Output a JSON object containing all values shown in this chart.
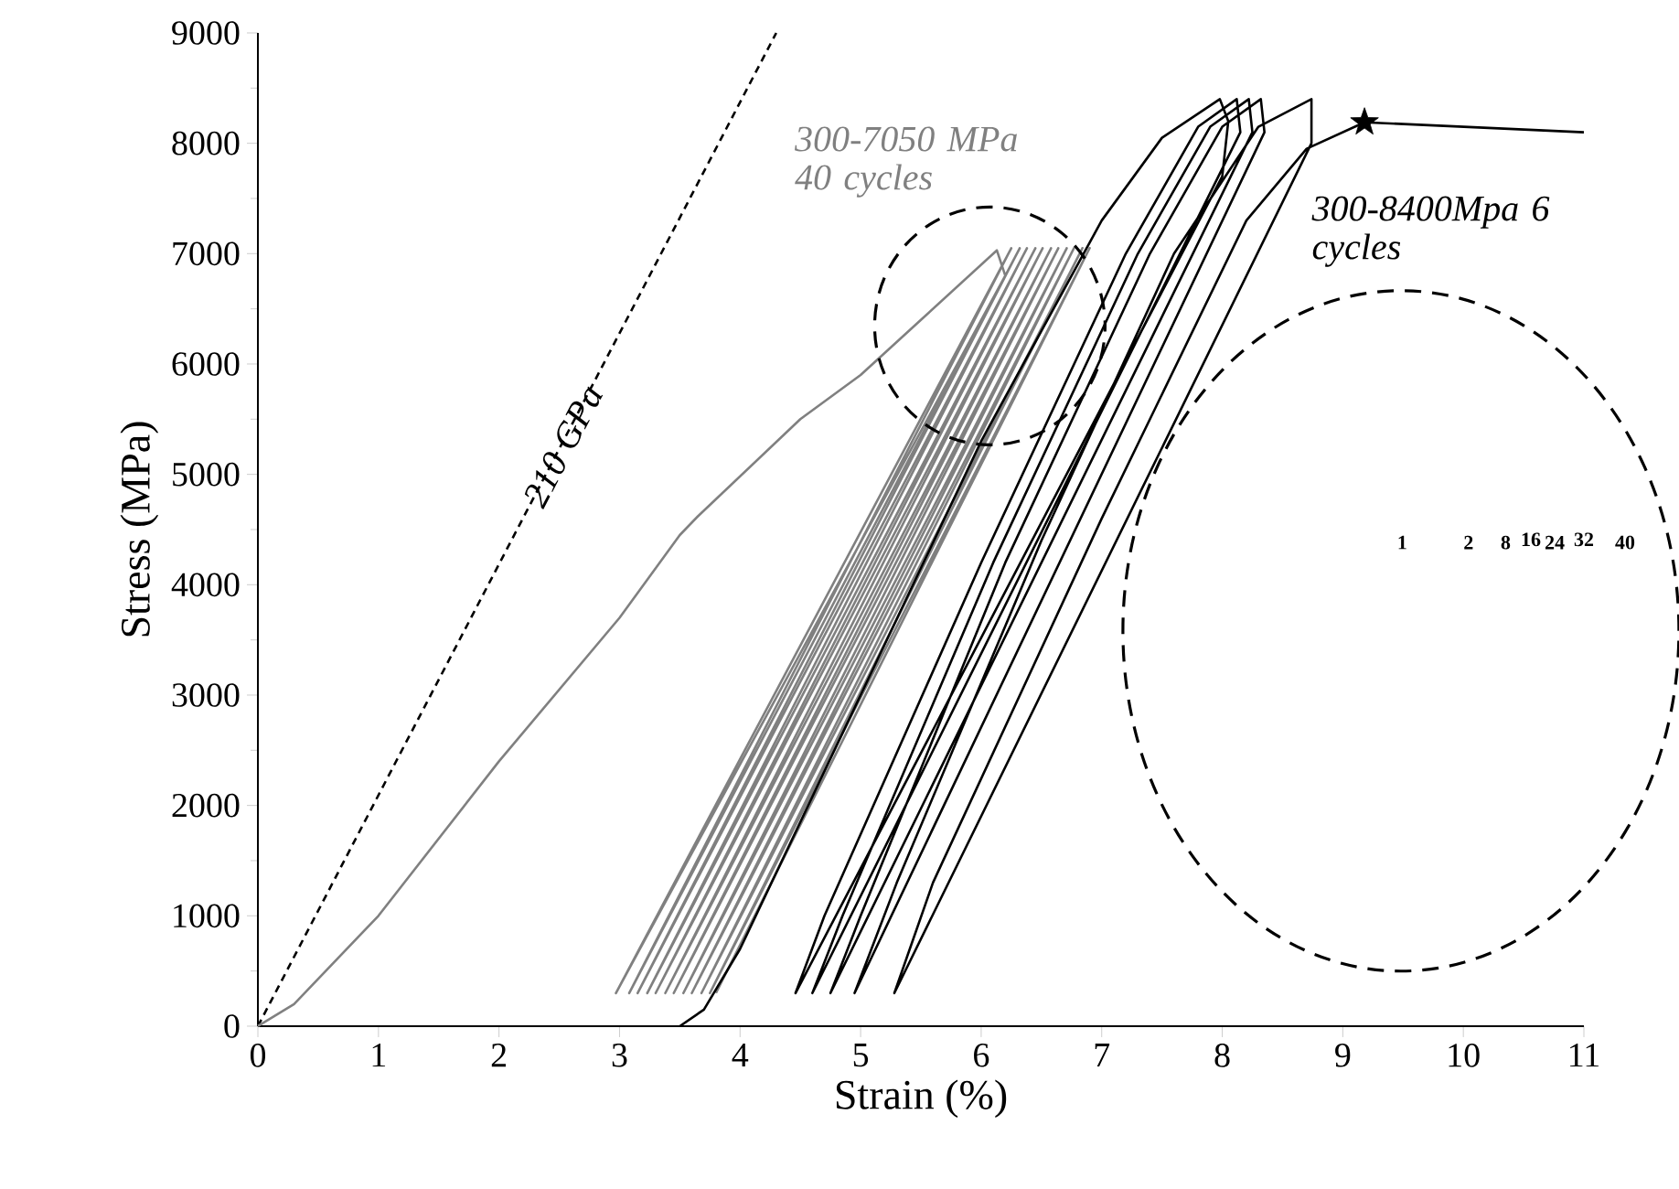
{
  "chart_data": {
    "type": "line",
    "xlabel": "Strain (%)",
    "ylabel": "Stress (MPa)",
    "xlim": [
      0,
      11
    ],
    "ylim": [
      0,
      9000
    ],
    "xticks": [
      0,
      1,
      2,
      3,
      4,
      5,
      6,
      7,
      8,
      9,
      10,
      11
    ],
    "yticks": [
      0,
      1000,
      2000,
      3000,
      4000,
      5000,
      6000,
      7000,
      8000,
      9000
    ],
    "series": [
      {
        "name": "210 GPa",
        "type": "line",
        "color": "#000000",
        "line_style": "dashed",
        "x": [
          0,
          4.3
        ],
        "values": [
          0,
          9000
        ]
      },
      {
        "name": "300-7050 MPa 40 cycles",
        "type": "line",
        "color": "#808080",
        "line_style": "solid",
        "x": [
          0,
          0.3,
          1,
          2,
          3,
          3.5,
          3.65,
          4.5,
          5.0,
          5.5,
          6.13,
          6.2,
          2.97,
          6.25,
          3.08,
          6.32,
          3.15,
          6.38,
          3.23,
          6.45,
          3.3,
          6.51,
          3.38,
          6.58,
          3.45,
          6.64,
          3.53,
          6.71,
          3.6,
          6.77,
          3.68,
          6.84,
          3.75,
          6.9,
          3.8
        ],
        "values": [
          0,
          200,
          1000,
          2400,
          3700,
          4450,
          4620,
          5500,
          5900,
          6400,
          7030,
          6800,
          300,
          7050,
          300,
          7050,
          300,
          7050,
          300,
          7050,
          300,
          7050,
          300,
          7050,
          300,
          7050,
          300,
          7050,
          300,
          7050,
          300,
          7050,
          300,
          7050,
          300
        ]
      },
      {
        "name": "300-8400Mpa 6 cycles",
        "type": "line",
        "color": "#000000",
        "line_style": "solid",
        "x": [
          3.5,
          3.7,
          4.0,
          5.0,
          6.0,
          7.0,
          7.5,
          7.98,
          8.05,
          8.0,
          4.46,
          4.7,
          6.0,
          7.2,
          7.8,
          8.12,
          8.15,
          4.6,
          4.85,
          6.1,
          7.3,
          7.9,
          8.22,
          8.25,
          4.75,
          5.0,
          6.2,
          7.4,
          8.0,
          8.32,
          8.35,
          4.95,
          5.3,
          6.5,
          7.6,
          8.3,
          8.74,
          8.74,
          5.28,
          5.6,
          7.0,
          8.2,
          8.7,
          9.18,
          11.0
        ],
        "values": [
          0,
          150,
          700,
          3000,
          5300,
          7300,
          8050,
          8400,
          8200,
          7700,
          300,
          1000,
          4200,
          7000,
          8150,
          8400,
          8100,
          300,
          1000,
          4200,
          7000,
          8150,
          8400,
          8100,
          300,
          1000,
          4200,
          7000,
          8150,
          8400,
          8100,
          300,
          1300,
          4400,
          7000,
          8150,
          8400,
          8000,
          300,
          1300,
          4600,
          7300,
          7950,
          8190,
          8100
        ]
      },
      {
        "type": "scatter",
        "color": "#000000",
        "marker": "star",
        "x": [
          9.18
        ],
        "values": [
          8190
        ]
      }
    ],
    "annotations": [
      "1",
      "2",
      "8",
      "16",
      "24",
      "32",
      "40"
    ]
  }
}
